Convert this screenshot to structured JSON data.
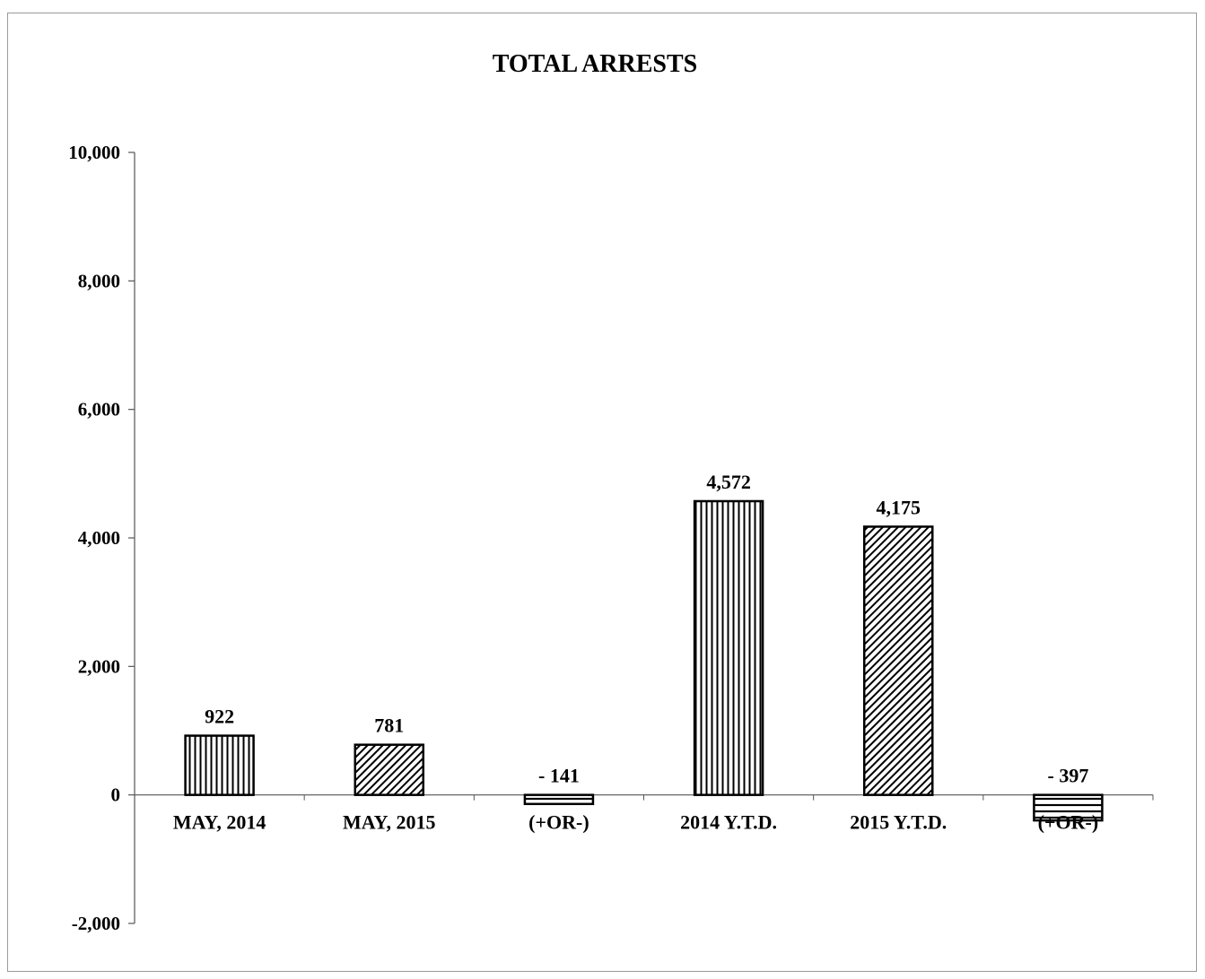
{
  "chart_data": {
    "type": "bar",
    "title": "TOTAL ARRESTS",
    "categories": [
      "MAY, 2014",
      "MAY, 2015",
      "(+OR-)",
      "2014 Y.T.D.",
      "2015 Y.T.D.",
      "(+OR-)"
    ],
    "values": [
      922,
      781,
      -141,
      4572,
      4175,
      -397
    ],
    "data_labels": [
      "922",
      "781",
      "- 141",
      "4,572",
      "4,175",
      "- 397"
    ],
    "patterns": [
      "vertical",
      "diagonal",
      "horizontal",
      "vertical",
      "diagonal",
      "horizontal"
    ],
    "ylim": [
      -2000,
      10000
    ],
    "yticks": [
      -2000,
      0,
      2000,
      4000,
      6000,
      8000,
      10000
    ],
    "ytick_labels": [
      "-2,000",
      "0",
      "2,000",
      "4,000",
      "6,000",
      "8,000",
      "10,000"
    ],
    "xlabel": "",
    "ylabel": "",
    "grid": false,
    "legend": "none",
    "colors": {
      "bar_stroke": "#000000",
      "bar_fill": "#ffffff",
      "axis": "#555555"
    }
  }
}
